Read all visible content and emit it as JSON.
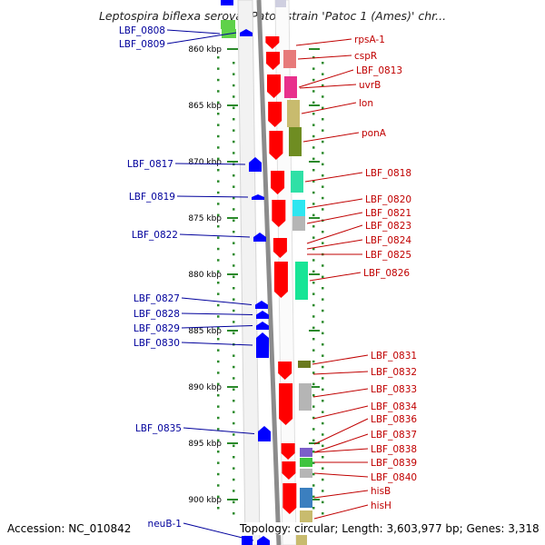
{
  "title": "Leptospira biflexa serovar Patoc strain 'Patoc 1 (Ames)' chr...",
  "footer": {
    "accession": "Accession: NC_010842",
    "topology": "Topology: circular; Length: 3,603,977 bp; Genes: 3,318"
  },
  "colors": {
    "forward_gene": "#ff0000",
    "reverse_gene": "#0000ff",
    "left_label": "#00009c",
    "right_label": "#c00000",
    "tick": "#2b8a2b",
    "backbone": "#8c8c8c"
  },
  "scale": {
    "unit": "kbp",
    "tick_labels": [
      {
        "kbp": 860,
        "label": "860 kbp"
      },
      {
        "kbp": 865,
        "label": "865 kbp"
      },
      {
        "kbp": 870,
        "label": "870 kbp"
      },
      {
        "kbp": 875,
        "label": "875 kbp"
      },
      {
        "kbp": 880,
        "label": "880 kbp"
      },
      {
        "kbp": 885,
        "label": "885 kbp"
      },
      {
        "kbp": 890,
        "label": "890 kbp"
      },
      {
        "kbp": 895,
        "label": "895 kbp"
      },
      {
        "kbp": 900,
        "label": "900 kbp"
      }
    ]
  },
  "reverse_genes": [
    {
      "name": "LBF_0808",
      "color": "#5fd14a"
    },
    {
      "name": "LBF_0809",
      "color": "#0000ff"
    },
    {
      "name": "LBF_0817",
      "color": "#0000ff"
    },
    {
      "name": "LBF_0819",
      "color": "#0000ff"
    },
    {
      "name": "LBF_0822",
      "color": "#0000ff"
    },
    {
      "name": "LBF_0827",
      "color": "#0000ff"
    },
    {
      "name": "LBF_0828",
      "color": "#0000ff"
    },
    {
      "name": "LBF_0829",
      "color": "#0000ff"
    },
    {
      "name": "LBF_0830",
      "color": "#0000ff"
    },
    {
      "name": "LBF_0835",
      "color": "#0000ff"
    },
    {
      "name": "neuB-1",
      "color": "#0000ff"
    }
  ],
  "forward_genes": [
    {
      "name": "rpsA-1",
      "color": "#e76a6a"
    },
    {
      "name": "cspR",
      "color": "#e77a7a"
    },
    {
      "name": "LBF_0813",
      "color": "#e8308c"
    },
    {
      "name": "uvrB",
      "color": "#e8308c"
    },
    {
      "name": "lon",
      "color": "#c8bb6e"
    },
    {
      "name": "ponA",
      "color": "#6f8d22"
    },
    {
      "name": "LBF_0818",
      "color": "#2fe0a6"
    },
    {
      "name": "LBF_0820",
      "color": "#2ee6f0"
    },
    {
      "name": "LBF_0821",
      "color": "#b5b5b5"
    },
    {
      "name": "LBF_0823",
      "color": "#ff0000"
    },
    {
      "name": "LBF_0824",
      "color": "#ff0000"
    },
    {
      "name": "LBF_0825",
      "color": "#ff0000"
    },
    {
      "name": "LBF_0826",
      "color": "#17e596"
    },
    {
      "name": "LBF_0831",
      "color": "#6a7a1e"
    },
    {
      "name": "LBF_0832",
      "color": "#ff0000"
    },
    {
      "name": "LBF_0833",
      "color": "#b5b5b5"
    },
    {
      "name": "LBF_0834",
      "color": "#ff0000"
    },
    {
      "name": "LBF_0836",
      "color": "#ff0000"
    },
    {
      "name": "LBF_0837",
      "color": "#ff0000"
    },
    {
      "name": "LBF_0838",
      "color": "#7b5ec9"
    },
    {
      "name": "LBF_0839",
      "color": "#3fc43f"
    },
    {
      "name": "LBF_0840",
      "color": "#b5b5b5"
    },
    {
      "name": "hisB",
      "color": "#3b7fbf"
    },
    {
      "name": "hisH",
      "color": "#c8bb6e"
    }
  ]
}
